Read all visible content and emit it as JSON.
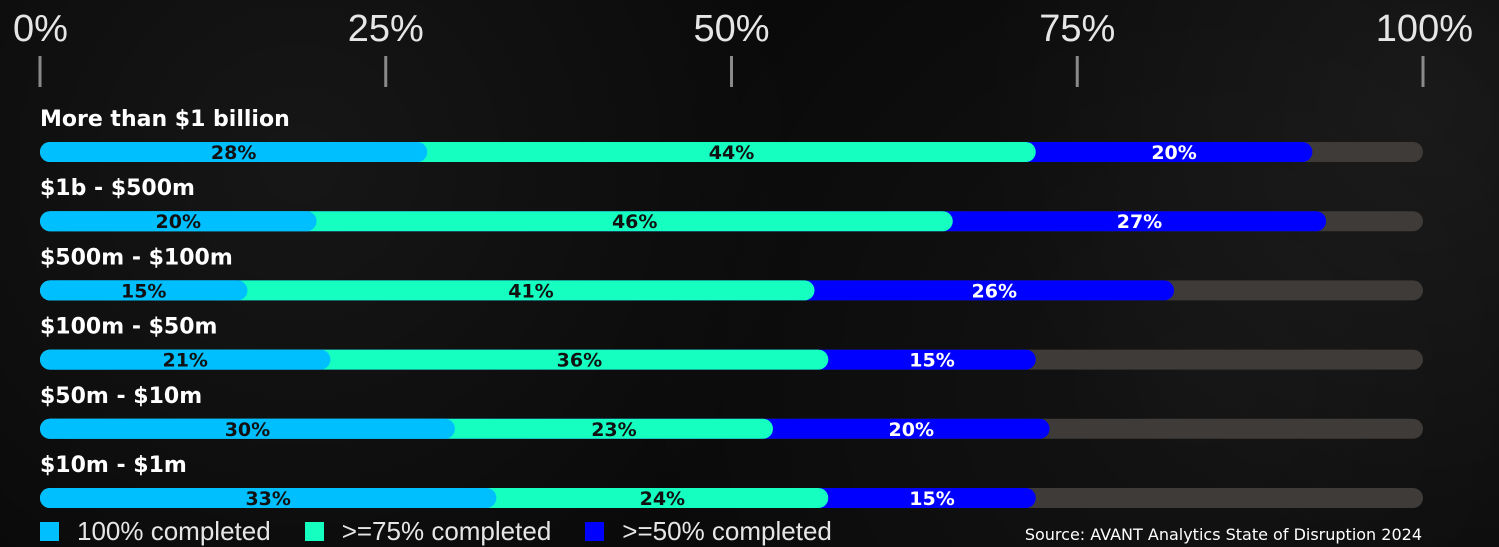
{
  "chart_data": {
    "type": "bar",
    "orientation": "horizontal",
    "stacked": true,
    "xlim": [
      0,
      100
    ],
    "x_ticks": [
      "0%",
      "25%",
      "50%",
      "75%",
      "100%"
    ],
    "categories": [
      "More than $1 billion",
      "$1b - $500m",
      "$500m - $100m",
      "$100m - $50m",
      "$50m - $10m",
      "$10m - $1m"
    ],
    "series": [
      {
        "name": "100% completed",
        "color": "#00bfff",
        "label_color": "#111111",
        "values": [
          28,
          20,
          15,
          21,
          30,
          33
        ]
      },
      {
        "name": ">=75% completed",
        "color": "#14ffc0",
        "label_color": "#111111",
        "values": [
          44,
          46,
          41,
          36,
          23,
          24
        ]
      },
      {
        "name": ">=50% completed",
        "color": "#0000ff",
        "label_color": "#ffffff",
        "values": [
          20,
          27,
          26,
          15,
          20,
          15
        ]
      }
    ],
    "track_color": "#3e3b38",
    "legend_position": "bottom-left",
    "source": "Source: AVANT Analytics State of Disruption 2024"
  }
}
